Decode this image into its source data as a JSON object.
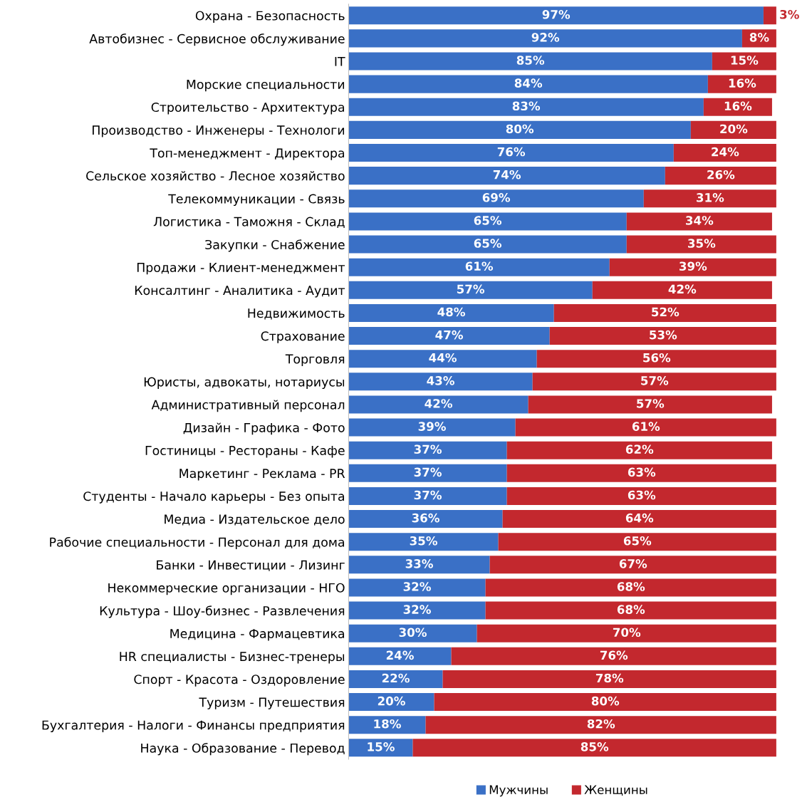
{
  "chart_data": {
    "type": "bar",
    "orientation": "horizontal",
    "stacked": true,
    "legend": "bottom",
    "tick_labels": "y",
    "grid": false,
    "categories": [
      "Охрана - Безопасность",
      "Автобизнес - Сервисное обслуживание",
      "IT",
      "Морские специальности",
      "Строительство - Архитектура",
      "Производство - Инженеры - Технологи",
      "Топ-менеджмент - Директора",
      "Сельское хозяйство - Лесное хозяйство",
      "Телекоммуникации - Связь",
      "Логистика - Таможня - Склад",
      "Закупки - Снабжение",
      "Продажи - Клиент-менеджмент",
      "Консалтинг - Аналитика - Аудит",
      "Недвижимость",
      "Страхование",
      "Торговля",
      "Юристы, адвокаты, нотариусы",
      "Административный персонал",
      "Дизайн - Графика - Фото",
      "Гостиницы - Рестораны - Кафе",
      "Маркетинг - Реклама - PR",
      "Студенты - Начало карьеры - Без опыта",
      "Медиа - Издательское дело",
      "Рабочие специальности - Персонал для дома",
      "Банки - Инвестиции - Лизинг",
      "Некоммерческие организации - НГО",
      "Культура - Шоу-бизнес - Развлечения",
      "Медицина - Фармацевтика",
      "HR специалисты - Бизнес-тренеры",
      "Спорт - Красота - Оздоровление",
      "Туризм - Путешествия",
      "Бухгалтерия - Налоги - Финансы предприятия",
      "Наука - Образование - Перевод"
    ],
    "series": [
      {
        "name": "Мужчины",
        "color": "#3a70c6",
        "values": [
          97,
          92,
          85,
          84,
          83,
          80,
          76,
          74,
          69,
          65,
          65,
          61,
          57,
          48,
          47,
          44,
          43,
          42,
          39,
          37,
          37,
          37,
          36,
          35,
          33,
          32,
          32,
          30,
          24,
          22,
          20,
          18,
          15
        ],
        "value_labels": [
          "97%",
          "92%",
          "85%",
          "84%",
          "83%",
          "80%",
          "76%",
          "74%",
          "69%",
          "65%",
          "65%",
          "61%",
          "57%",
          "48%",
          "47%",
          "44%",
          "43%",
          "42%",
          "39%",
          "37%",
          "37%",
          "37%",
          "36%",
          "35%",
          "33%",
          "32%",
          "32%",
          "30%",
          "24%",
          "22%",
          "20%",
          "18%",
          "15%"
        ]
      },
      {
        "name": "Женщины",
        "color": "#c3282e",
        "values": [
          3,
          8,
          15,
          16,
          16,
          20,
          24,
          26,
          31,
          34,
          35,
          39,
          42,
          52,
          53,
          56,
          57,
          57,
          61,
          62,
          63,
          63,
          64,
          65,
          67,
          68,
          68,
          70,
          76,
          78,
          80,
          82,
          85
        ],
        "value_labels": [
          "3%",
          "8%",
          "15%",
          "16%",
          "16%",
          "20%",
          "24%",
          "26%",
          "31%",
          "34%",
          "35%",
          "39%",
          "42%",
          "52%",
          "53%",
          "56%",
          "57%",
          "57%",
          "61%",
          "62%",
          "63%",
          "63%",
          "64%",
          "65%",
          "67%",
          "68%",
          "68%",
          "70%",
          "76%",
          "78%",
          "80%",
          "82%",
          "85%"
        ]
      }
    ]
  }
}
